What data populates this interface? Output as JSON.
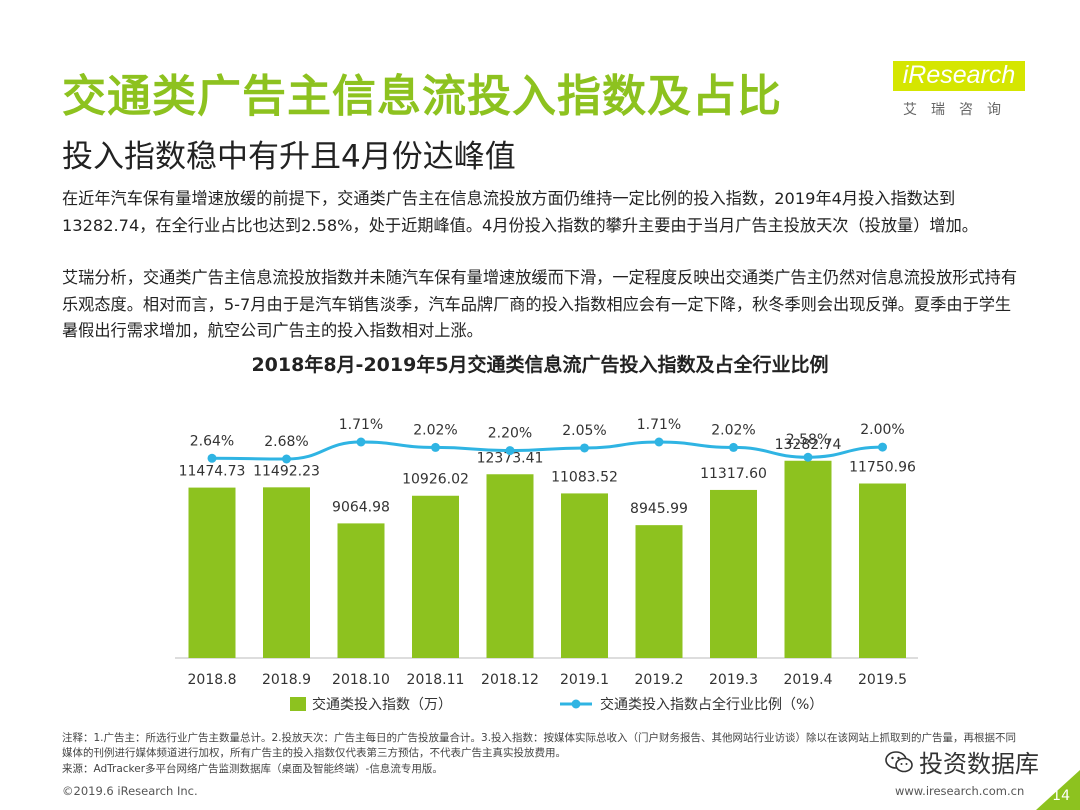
{
  "header": {
    "title": "交通类广告主信息流投入指数及占比",
    "subtitle": "投入指数稳中有升且4月份达峰值",
    "logo_text": "iResearch",
    "logo_sub": "艾瑞咨询"
  },
  "body": {
    "paragraph1": "在近年汽车保有量增速放缓的前提下，交通类广告主在信息流投放方面仍维持一定比例的投入指数，2019年4月投入指数达到13282.74，在全行业占比也达到2.58%，处于近期峰值。4月份投入指数的攀升主要由于当月广告主投放天次（投放量）增加。",
    "paragraph2": "艾瑞分析，交通类广告主信息流投放指数并未随汽车保有量增速放缓而下滑，一定程度反映出交通类广告主仍然对信息流投放形式持有乐观态度。相对而言，5-7月由于是汽车销售淡季，汽车品牌厂商的投入指数相应会有一定下降，秋冬季则会出现反弹。夏季由于学生暑假出行需求增加，航空公司广告主的投入指数相对上涨。"
  },
  "chart_data": {
    "type": "bar",
    "title": "2018年8月-2019年5月交通类信息流广告投入指数及占全行业比例",
    "categories": [
      "2018.8",
      "2018.9",
      "2018.10",
      "2018.11",
      "2018.12",
      "2019.1",
      "2019.2",
      "2019.3",
      "2019.4",
      "2019.5"
    ],
    "series": [
      {
        "name": "交通类投入指数（万）",
        "kind": "bar",
        "color": "#8dc21f",
        "values": [
          11474.73,
          11492.23,
          9064.98,
          10926.02,
          12373.41,
          11083.52,
          8945.99,
          11317.6,
          13282.74,
          11750.96
        ],
        "labels": [
          "11474.73",
          "11492.23",
          "9064.98",
          "10926.02",
          "12373.41",
          "11083.52",
          "8945.99",
          "11317.60",
          "13282.74",
          "11750.96"
        ]
      },
      {
        "name": "交通类投入指数占全行业比例（%）",
        "kind": "line",
        "color": "#2fb4e3",
        "values": [
          2.64,
          2.68,
          1.71,
          2.02,
          2.2,
          2.05,
          1.71,
          2.02,
          2.58,
          2.0
        ],
        "labels": [
          "2.64%",
          "2.68%",
          "1.71%",
          "2.02%",
          "2.20%",
          "2.05%",
          "1.71%",
          "2.02%",
          "2.58%",
          "2.00%"
        ]
      }
    ],
    "ylim_bar": [
      0,
      24000
    ],
    "ylim_line": [
      0,
      2.68
    ],
    "legend_position": "bottom",
    "grid": false
  },
  "notes": {
    "note1": "注释：1.广告主：所选行业广告主数量总计。2.投放天次：广告主每日的广告投放量合计。3.投入指数：按媒体实际总收入（门户财务报告、其他网站行业访谈）除以在该网站上抓取到的广告量，再根据不同媒体的刊例进行媒体频道进行加权，所有广告主的投入指数仅代表第三方预估，不代表广告主真实投放费用。",
    "note2": "来源：AdTracker多平台网络广告监测数据库（桌面及智能终端）-信息流专用版。"
  },
  "footer": {
    "copyright": "©2019.6 iResearch Inc.",
    "website": "www.iresearch.com.cn",
    "page_number": "14"
  },
  "watermark": {
    "text": "投资数据库",
    "icon": "wechat-icon"
  }
}
